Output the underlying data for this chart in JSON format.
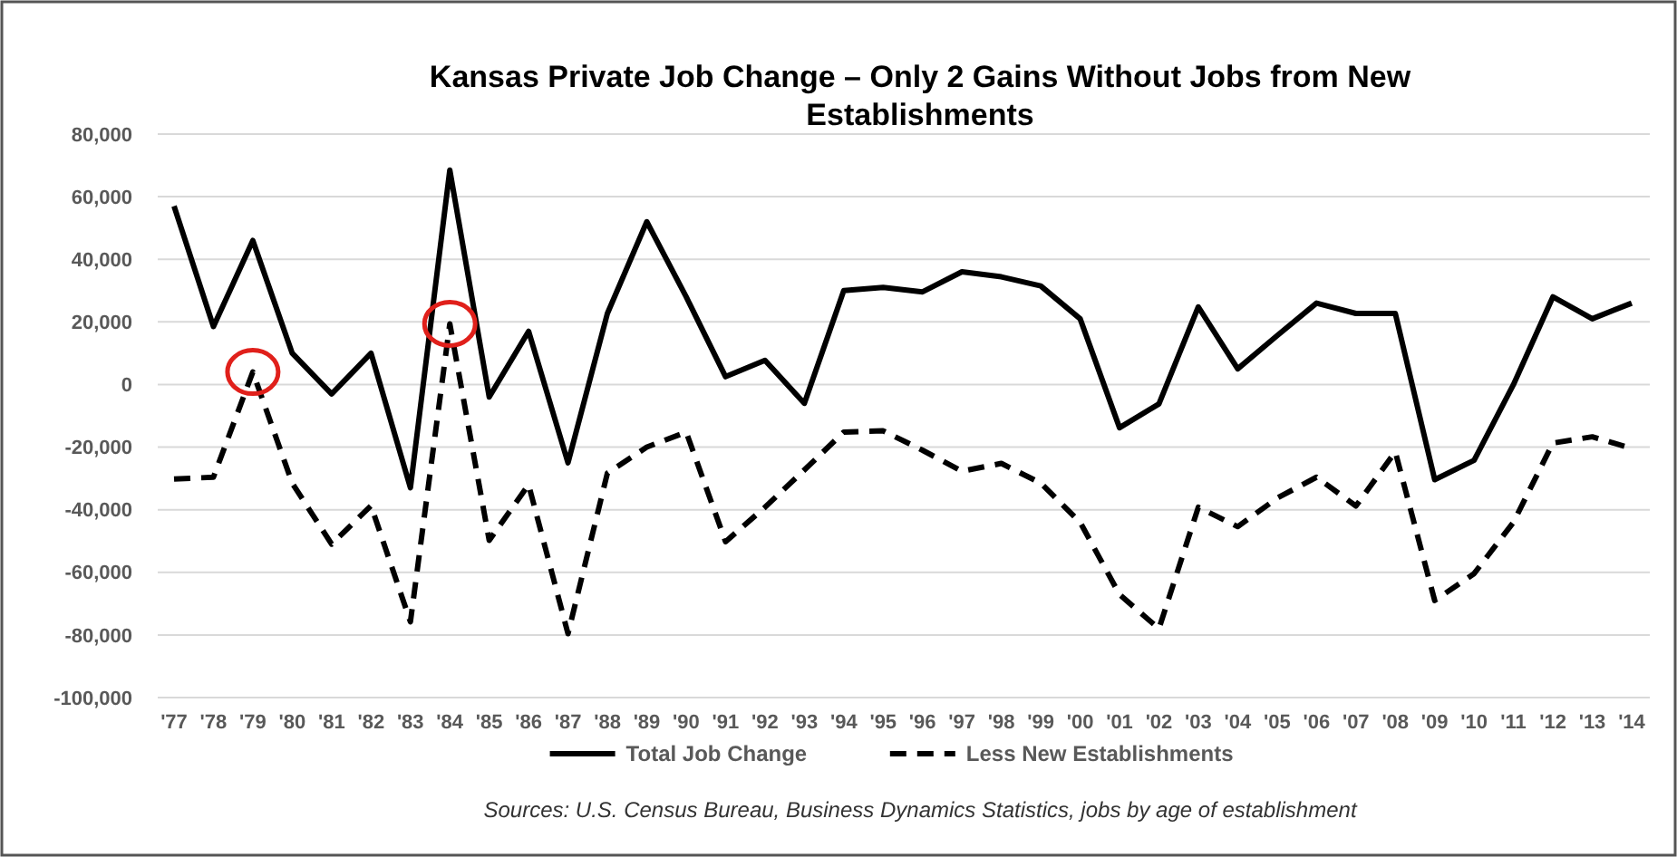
{
  "chart_data": {
    "type": "line",
    "title": "Kansas Private Job Change – Only 2 Gains Without Jobs from New Establishments",
    "categories": [
      "'77",
      "'78",
      "'79",
      "'80",
      "'81",
      "'82",
      "'83",
      "'84",
      "'85",
      "'86",
      "'87",
      "'88",
      "'89",
      "'90",
      "'91",
      "'92",
      "'93",
      "'94",
      "'95",
      "'96",
      "'97",
      "'98",
      "'99",
      "'00",
      "'01",
      "'02",
      "'03",
      "'04",
      "'05",
      "'06",
      "'07",
      "'08",
      "'09",
      "'10",
      "'11",
      "'12",
      "'13",
      "'14"
    ],
    "series": [
      {
        "name": "Total Job Change",
        "color": "#000000",
        "line_style": "solid",
        "values": [
          57000,
          18500,
          46000,
          10000,
          -3000,
          10000,
          -33000,
          68500,
          -4000,
          17000,
          -25000,
          22700,
          52000,
          28000,
          2500,
          7700,
          -6000,
          30000,
          31000,
          29600,
          36000,
          34400,
          31500,
          21000,
          -13800,
          -6200,
          24800,
          5000,
          15600,
          26000,
          22700,
          22700,
          -30400,
          -24200,
          0,
          28000,
          21000,
          26000
        ]
      },
      {
        "name": "Less New Establishments",
        "color": "#000000",
        "line_style": "dashed",
        "values": [
          -30200,
          -29600,
          4000,
          -31500,
          -51000,
          -38700,
          -75800,
          19400,
          -49800,
          -32000,
          -79600,
          -28300,
          -20000,
          -15200,
          -50200,
          -39200,
          -27300,
          -15200,
          -14800,
          -21000,
          -27700,
          -25200,
          -31500,
          -44000,
          -67100,
          -78000,
          -39200,
          -45400,
          -36300,
          -29600,
          -38800,
          -21500,
          -69000,
          -60400,
          -44000,
          -18700,
          -16700,
          -20400
        ]
      }
    ],
    "ylim": [
      -100000,
      80000
    ],
    "yticks": [
      {
        "value": -100000,
        "label": "-100,000"
      },
      {
        "value": -80000,
        "label": "-80,000"
      },
      {
        "value": -60000,
        "label": "-60,000"
      },
      {
        "value": -40000,
        "label": "-40,000"
      },
      {
        "value": -20000,
        "label": "-20,000"
      },
      0,
      {
        "value": 20000,
        "label": "20,000"
      },
      {
        "value": 40000,
        "label": "40,000"
      },
      {
        "value": 60000,
        "label": "60,000"
      },
      {
        "value": 80000,
        "label": "80,000"
      }
    ],
    "grid": "y",
    "legend": "bottom",
    "marker": "none",
    "annotations": [
      "Sources: U.S. Census Bureau, Business Dynamics Statistics, jobs by age of establishment"
    ]
  }
}
